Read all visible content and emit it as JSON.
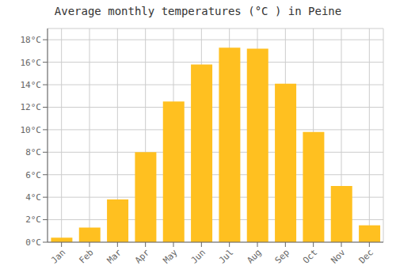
{
  "chart_data": {
    "type": "bar",
    "title": "Average monthly temperatures (°C ) in Peine",
    "categories": [
      "Jan",
      "Feb",
      "Mar",
      "Apr",
      "May",
      "Jun",
      "Jul",
      "Aug",
      "Sep",
      "Oct",
      "Nov",
      "Dec"
    ],
    "values": [
      0.4,
      1.3,
      3.8,
      8.0,
      12.5,
      15.8,
      17.3,
      17.2,
      14.1,
      9.8,
      5.0,
      1.5
    ],
    "color": "#FFC020",
    "ylim": [
      0,
      19
    ],
    "yticks": [
      {
        "value": 0,
        "label": "0°C"
      },
      {
        "value": 2,
        "label": "2°C"
      },
      {
        "value": 4,
        "label": "4°C"
      },
      {
        "value": 6,
        "label": "6°C"
      },
      {
        "value": 8,
        "label": "8°C"
      },
      {
        "value": 10,
        "label": "10°C"
      },
      {
        "value": 12,
        "label": "12°C"
      },
      {
        "value": 14,
        "label": "14°C"
      },
      {
        "value": 16,
        "label": "16°C"
      },
      {
        "value": 18,
        "label": "18°C"
      }
    ],
    "grid": true
  }
}
